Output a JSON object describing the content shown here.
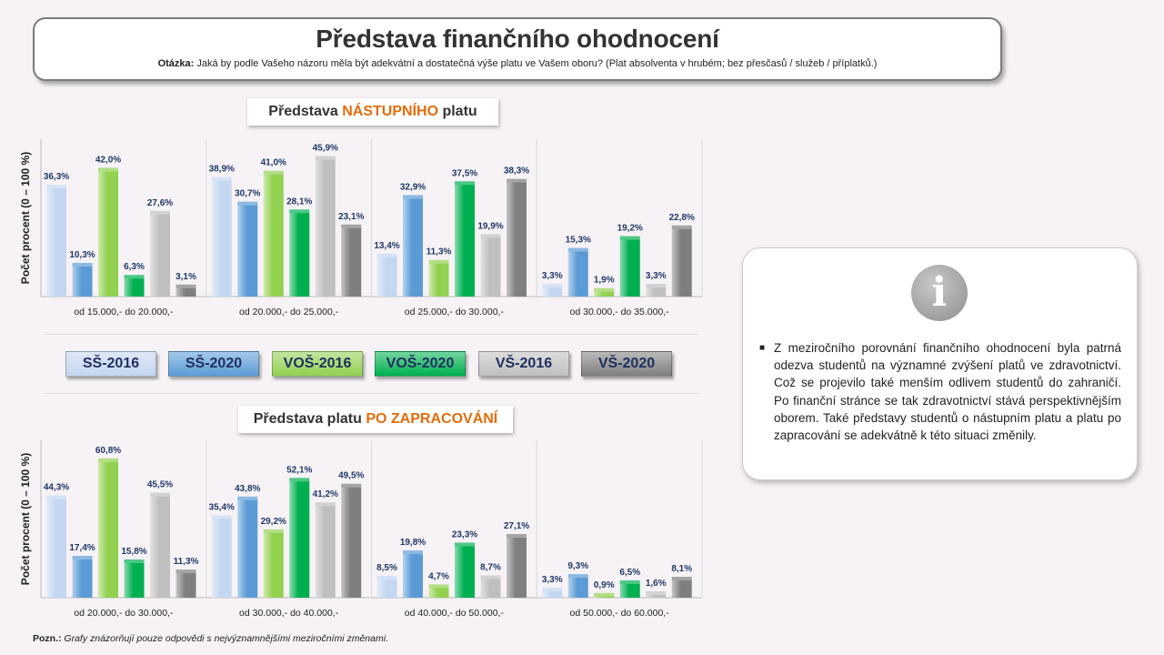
{
  "header": {
    "title": "Představa finančního ohodnocení",
    "question_label": "Otázka:",
    "question_text": "Jaká by podle Vašeho názoru měla být adekvátní a dostatečná výše platu ve Vašem oboru? (Plat absolventa v hrubém; bez přesčasů / služeb / příplatků.)"
  },
  "colors": {
    "SS-2016": "#c4d6f0",
    "SS-2020": "#5b9bd5",
    "VOS-2016": "#92d050",
    "VOS-2020": "#00b050",
    "VS-2016": "#bfbfbf",
    "VS-2020": "#7f7f7f",
    "accent": "#e46c0a",
    "label": "#1f3864"
  },
  "legend": {
    "items": [
      "SŠ-2016",
      "SŠ-2020",
      "VOŠ-2016",
      "VOŠ-2020",
      "VŠ-2016",
      "VŠ-2020"
    ]
  },
  "chart1": {
    "title_pre": "Představa ",
    "title_hl": "NÁSTUPNÍHO",
    "title_post": " platu"
  },
  "chart2": {
    "title_pre": "Představa platu ",
    "title_hl": "PO ZAPRACOVÁNÍ",
    "title_post": ""
  },
  "info": {
    "icon": "info-icon",
    "text": "Z meziročního porovnání finančního ohodnocení byla patrná odezva studentů na významné zvýšení platů ve zdravotnictví. Což se projevilo také menším odlivem studentů do zahraničí. Po finanční stránce se tak zdravotnictví stává perspektivnějším oborem. Také představy studentů o nástupním platu a platu po zapracování se adekvátně k této situaci změnily."
  },
  "note": {
    "label": "Pozn.:",
    "text": " Grafy znázorňují pouze odpovědi s nejvýznamnějšími meziročními změnami."
  },
  "chart_data": [
    {
      "type": "bar",
      "title": "Představa NÁSTUPNÍHO platu",
      "ylabel": "Počet procent (0 – 100 %)",
      "categories": [
        "od 15.000,- do 20.000,-",
        "od 20.000,- do 25.000,-",
        "od 25.000,- do 30.000,-",
        "od 30.000,- do 35.000,-"
      ],
      "series": [
        {
          "name": "SŠ-2016",
          "values": [
            36.3,
            38.9,
            13.4,
            3.3
          ]
        },
        {
          "name": "SŠ-2020",
          "values": [
            10.3,
            30.7,
            32.9,
            15.3
          ]
        },
        {
          "name": "VOŠ-2016",
          "values": [
            42.0,
            41.0,
            11.3,
            1.9
          ]
        },
        {
          "name": "VOŠ-2020",
          "values": [
            6.3,
            28.1,
            37.5,
            19.2
          ]
        },
        {
          "name": "VŠ-2016",
          "values": [
            27.6,
            45.9,
            19.9,
            3.3
          ]
        },
        {
          "name": "VŠ-2020",
          "values": [
            3.1,
            23.1,
            38.3,
            22.8
          ]
        }
      ],
      "value_labels": [
        [
          "36,3%",
          "38,9%",
          "13,4%",
          "3,3%"
        ],
        [
          "10,3%",
          "30,7%",
          "32,9%",
          "15,3%"
        ],
        [
          "42,0%",
          "41,0%",
          "11,3%",
          "1,9%"
        ],
        [
          "6,3%",
          "28,1%",
          "37,5%",
          "19,2%"
        ],
        [
          "27,6%",
          "45,9%",
          "19,9%",
          "3,3%"
        ],
        [
          "3,1%",
          "23,1%",
          "38,3%",
          "22,8%"
        ]
      ],
      "grid": false
    },
    {
      "type": "bar",
      "title": "Představa platu PO ZAPRACOVÁNÍ",
      "ylabel": "Počet procent (0 – 100 %)",
      "categories": [
        "od 20.000,- do 30.000,-",
        "od 30.000,- do 40.000,-",
        "od 40.000,- do 50.000,-",
        "od 50.000,- do 60.000,-"
      ],
      "series": [
        {
          "name": "SŠ-2016",
          "values": [
            44.3,
            35.4,
            8.5,
            3.3
          ]
        },
        {
          "name": "SŠ-2020",
          "values": [
            17.4,
            43.8,
            19.8,
            9.3
          ]
        },
        {
          "name": "VOŠ-2016",
          "values": [
            60.8,
            29.2,
            4.7,
            0.9
          ]
        },
        {
          "name": "VOŠ-2020",
          "values": [
            15.8,
            52.1,
            23.3,
            6.5
          ]
        },
        {
          "name": "VŠ-2016",
          "values": [
            45.5,
            41.2,
            8.7,
            1.6
          ]
        },
        {
          "name": "VŠ-2020",
          "values": [
            11.3,
            49.5,
            27.1,
            8.1
          ]
        }
      ],
      "value_labels": [
        [
          "44,3%",
          "35,4%",
          "8,5%",
          "3,3%"
        ],
        [
          "17,4%",
          "43,8%",
          "19,8%",
          "9,3%"
        ],
        [
          "60,8%",
          "29,2%",
          "4,7%",
          "0,9%"
        ],
        [
          "15,8%",
          "52,1%",
          "23,3%",
          "6,5%"
        ],
        [
          "45,5%",
          "41,2%",
          "8,7%",
          "1,6%"
        ],
        [
          "11,3%",
          "49,5%",
          "27,1%",
          "8,1%"
        ]
      ],
      "grid": false
    }
  ]
}
